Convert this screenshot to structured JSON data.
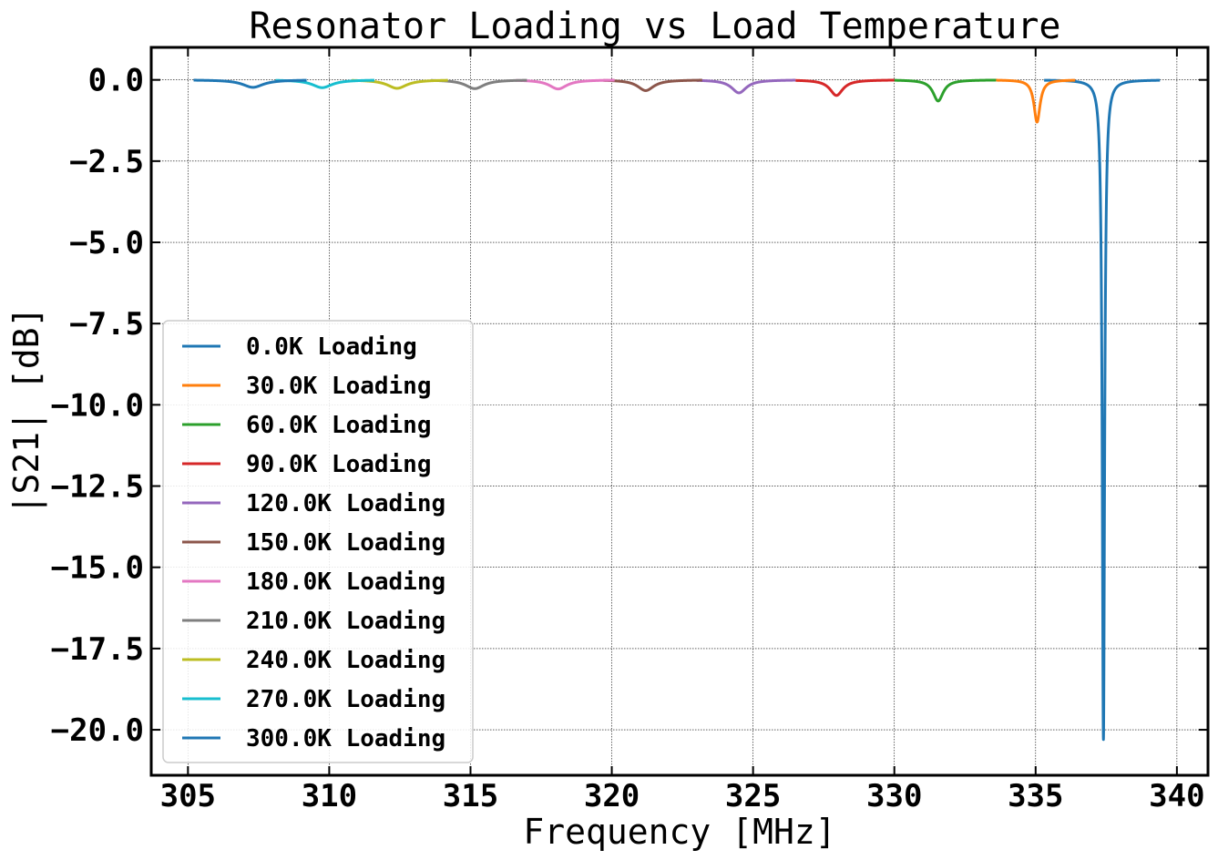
{
  "chart_data": {
    "type": "line",
    "title": "Resonator Loading vs Load Temperature",
    "xlabel": "Frequency [MHz]",
    "ylabel": "|S21| [dB]",
    "xlim": [
      303.7,
      341.1
    ],
    "ylim": [
      -21.4,
      1.0
    ],
    "xticks": [
      305,
      310,
      315,
      320,
      325,
      330,
      335,
      340
    ],
    "xtick_labels": [
      "305",
      "310",
      "315",
      "320",
      "325",
      "330",
      "335",
      "340"
    ],
    "yticks": [
      0.0,
      -2.5,
      -5.0,
      -7.5,
      -10.0,
      -12.5,
      -15.0,
      -17.5,
      -20.0
    ],
    "ytick_labels": [
      "0.0",
      "−2.5",
      "−5.0",
      "−7.5",
      "−10.0",
      "−12.5",
      "−15.0",
      "−17.5",
      "−20.0"
    ],
    "grid": true,
    "legend_position": "lower-left",
    "series": [
      {
        "name": "0.0K Loading",
        "color": "#1f77b4",
        "x_range": [
          335.3,
          339.4
        ],
        "f0": 337.4,
        "depth": -20.3,
        "width": 0.05
      },
      {
        "name": "30.0K Loading",
        "color": "#ff7f0e",
        "x_range": [
          333.6,
          336.4
        ],
        "f0": 335.05,
        "depth": -1.3,
        "width": 0.13
      },
      {
        "name": "60.0K Loading",
        "color": "#2ca02c",
        "x_range": [
          330.0,
          333.6
        ],
        "f0": 331.55,
        "depth": -0.65,
        "width": 0.22
      },
      {
        "name": "90.0K Loading",
        "color": "#d62728",
        "x_range": [
          326.5,
          330.0
        ],
        "f0": 327.95,
        "depth": -0.48,
        "width": 0.28
      },
      {
        "name": "120.0K Loading",
        "color": "#9467bd",
        "x_range": [
          323.0,
          326.5
        ],
        "f0": 324.5,
        "depth": -0.4,
        "width": 0.32
      },
      {
        "name": "150.0K Loading",
        "color": "#8c564b",
        "x_range": [
          319.7,
          323.2
        ],
        "f0": 321.2,
        "depth": -0.33,
        "width": 0.35
      },
      {
        "name": "180.0K Loading",
        "color": "#e377c2",
        "x_range": [
          316.6,
          320.1
        ],
        "f0": 318.1,
        "depth": -0.28,
        "width": 0.38
      },
      {
        "name": "210.0K Loading",
        "color": "#7f7f7f",
        "x_range": [
          313.6,
          317.0
        ],
        "f0": 315.15,
        "depth": -0.27,
        "width": 0.4
      },
      {
        "name": "240.0K Loading",
        "color": "#bcbd22",
        "x_range": [
          310.8,
          314.2
        ],
        "f0": 312.4,
        "depth": -0.26,
        "width": 0.42
      },
      {
        "name": "270.0K Loading",
        "color": "#17becf",
        "x_range": [
          308.1,
          311.6
        ],
        "f0": 309.75,
        "depth": -0.24,
        "width": 0.43
      },
      {
        "name": "300.0K Loading",
        "color": "#1f77b4",
        "x_range": [
          305.2,
          309.2
        ],
        "f0": 307.3,
        "depth": -0.23,
        "width": 0.45
      }
    ]
  }
}
